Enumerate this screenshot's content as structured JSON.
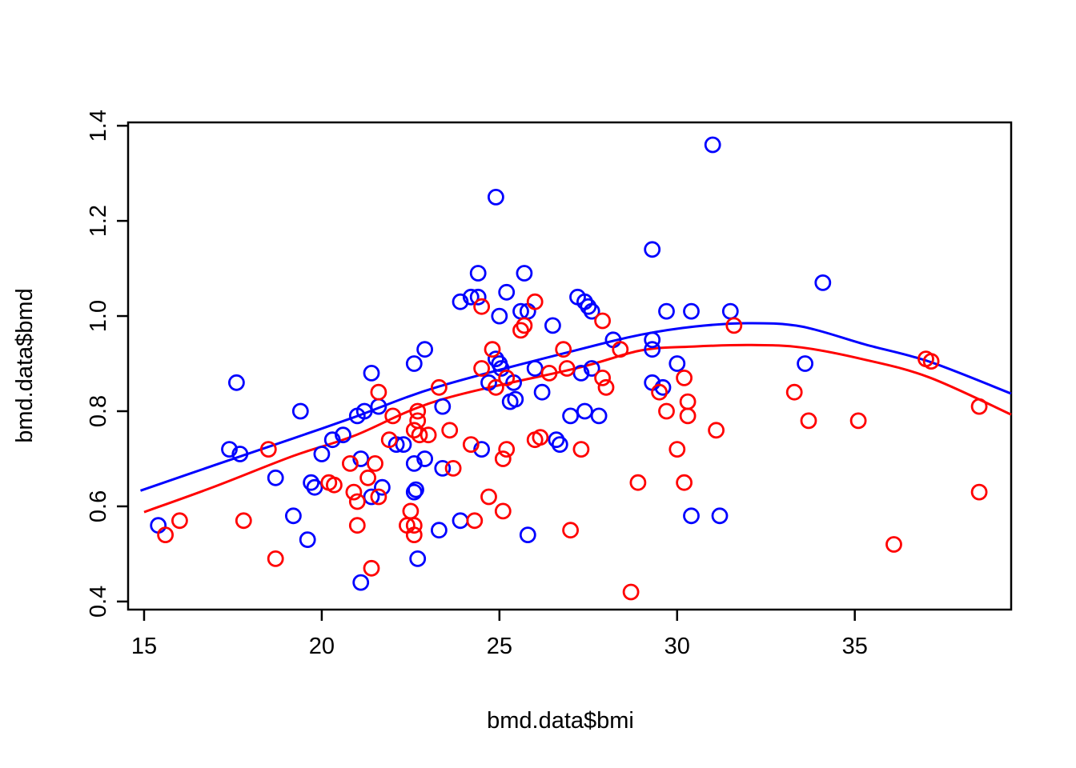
{
  "figure": {
    "background": "#ffffff",
    "border_color": "#000000",
    "x_axis": {
      "title": "bmd.data$bmi",
      "tick_labels": [
        "15",
        "20",
        "25",
        "30",
        "35"
      ],
      "tick_values": [
        15,
        20,
        25,
        30,
        35
      ]
    },
    "y_axis": {
      "title": "bmd.data$bmd",
      "tick_labels": [
        "0.4",
        "0.6",
        "0.8",
        "1.0",
        "1.2",
        "1.4"
      ],
      "tick_values": [
        0.4,
        0.6,
        0.8,
        1.0,
        1.2,
        1.4
      ]
    },
    "colors": {
      "blue_series": "#0000ff",
      "red_series": "#ff0000",
      "axis": "#000000"
    }
  },
  "chart_data": {
    "type": "scatter",
    "title": "",
    "xlabel": "bmd.data$bmi",
    "ylabel": "bmd.data$bmd",
    "xlim": [
      14.55,
      39.4
    ],
    "ylim": [
      0.383,
      1.407
    ],
    "grid": false,
    "legend_position": "none",
    "marker": "open-circle",
    "series": [
      {
        "name": "blue",
        "color": "#0000ff",
        "points": [
          [
            24.9,
            1.25
          ],
          [
            24.4,
            1.09
          ],
          [
            25.7,
            1.09
          ],
          [
            31.0,
            1.36
          ],
          [
            29.3,
            1.14
          ],
          [
            34.1,
            1.07
          ],
          [
            17.6,
            0.86
          ],
          [
            19.4,
            0.8
          ],
          [
            23.9,
            1.03
          ],
          [
            24.2,
            1.04
          ],
          [
            24.4,
            1.04
          ],
          [
            25.2,
            1.05
          ],
          [
            25.0,
            1.0
          ],
          [
            25.6,
            1.01
          ],
          [
            25.8,
            1.01
          ],
          [
            26.5,
            0.98
          ],
          [
            22.9,
            0.93
          ],
          [
            22.6,
            0.9
          ],
          [
            21.4,
            0.88
          ],
          [
            24.9,
            0.91
          ],
          [
            25.0,
            0.9
          ],
          [
            25.05,
            0.89
          ],
          [
            25.4,
            0.86
          ],
          [
            24.7,
            0.86
          ],
          [
            26.0,
            0.89
          ],
          [
            26.2,
            0.84
          ],
          [
            25.3,
            0.82
          ],
          [
            25.45,
            0.825
          ],
          [
            23.4,
            0.81
          ],
          [
            21.0,
            0.79
          ],
          [
            21.2,
            0.8
          ],
          [
            21.6,
            0.81
          ],
          [
            27.2,
            1.04
          ],
          [
            27.4,
            1.03
          ],
          [
            27.5,
            1.02
          ],
          [
            27.6,
            1.01
          ],
          [
            29.7,
            1.01
          ],
          [
            30.4,
            1.01
          ],
          [
            31.5,
            1.01
          ],
          [
            28.2,
            0.95
          ],
          [
            29.3,
            0.95
          ],
          [
            29.3,
            0.93
          ],
          [
            30.0,
            0.9
          ],
          [
            27.6,
            0.89
          ],
          [
            27.3,
            0.88
          ],
          [
            29.3,
            0.86
          ],
          [
            29.6,
            0.85
          ],
          [
            27.4,
            0.8
          ],
          [
            27.8,
            0.79
          ],
          [
            27.0,
            0.79
          ],
          [
            33.6,
            0.9
          ],
          [
            17.4,
            0.72
          ],
          [
            17.7,
            0.71
          ],
          [
            20.0,
            0.71
          ],
          [
            20.3,
            0.74
          ],
          [
            20.6,
            0.75
          ],
          [
            18.7,
            0.66
          ],
          [
            19.7,
            0.65
          ],
          [
            19.8,
            0.64
          ],
          [
            15.4,
            0.56
          ],
          [
            19.2,
            0.58
          ],
          [
            19.6,
            0.53
          ],
          [
            22.1,
            0.73
          ],
          [
            22.3,
            0.73
          ],
          [
            24.5,
            0.72
          ],
          [
            26.7,
            0.73
          ],
          [
            26.6,
            0.74
          ],
          [
            21.1,
            0.7
          ],
          [
            22.6,
            0.69
          ],
          [
            22.9,
            0.7
          ],
          [
            23.4,
            0.68
          ],
          [
            21.7,
            0.64
          ],
          [
            21.4,
            0.62
          ],
          [
            22.6,
            0.63
          ],
          [
            22.65,
            0.635
          ],
          [
            23.3,
            0.55
          ],
          [
            23.9,
            0.57
          ],
          [
            25.8,
            0.54
          ],
          [
            22.7,
            0.49
          ],
          [
            21.1,
            0.44
          ],
          [
            30.4,
            0.58
          ],
          [
            31.2,
            0.58
          ]
        ]
      },
      {
        "name": "red",
        "color": "#ff0000",
        "points": [
          [
            24.5,
            1.02
          ],
          [
            26.0,
            1.03
          ],
          [
            25.6,
            0.97
          ],
          [
            25.7,
            0.98
          ],
          [
            24.8,
            0.93
          ],
          [
            24.5,
            0.89
          ],
          [
            25.2,
            0.87
          ],
          [
            24.9,
            0.85
          ],
          [
            26.8,
            0.93
          ],
          [
            26.4,
            0.88
          ],
          [
            26.9,
            0.89
          ],
          [
            23.3,
            0.85
          ],
          [
            21.6,
            0.84
          ],
          [
            22.0,
            0.79
          ],
          [
            22.7,
            0.8
          ],
          [
            22.7,
            0.78
          ],
          [
            22.6,
            0.76
          ],
          [
            22.75,
            0.75
          ],
          [
            23.0,
            0.75
          ],
          [
            23.6,
            0.76
          ],
          [
            24.2,
            0.73
          ],
          [
            27.9,
            0.99
          ],
          [
            31.6,
            0.98
          ],
          [
            28.4,
            0.93
          ],
          [
            27.9,
            0.87
          ],
          [
            28.0,
            0.85
          ],
          [
            29.5,
            0.84
          ],
          [
            30.2,
            0.87
          ],
          [
            30.3,
            0.82
          ],
          [
            30.3,
            0.79
          ],
          [
            29.7,
            0.8
          ],
          [
            31.1,
            0.76
          ],
          [
            33.3,
            0.84
          ],
          [
            37.0,
            0.91
          ],
          [
            37.15,
            0.905
          ],
          [
            38.5,
            0.81
          ],
          [
            33.7,
            0.78
          ],
          [
            35.1,
            0.78
          ],
          [
            15.6,
            0.54
          ],
          [
            16.0,
            0.57
          ],
          [
            17.8,
            0.57
          ],
          [
            18.7,
            0.49
          ],
          [
            18.5,
            0.72
          ],
          [
            20.2,
            0.65
          ],
          [
            20.35,
            0.645
          ],
          [
            20.8,
            0.69
          ],
          [
            20.9,
            0.63
          ],
          [
            21.9,
            0.74
          ],
          [
            25.2,
            0.72
          ],
          [
            25.1,
            0.7
          ],
          [
            26.0,
            0.74
          ],
          [
            26.15,
            0.745
          ],
          [
            21.5,
            0.69
          ],
          [
            23.7,
            0.68
          ],
          [
            21.3,
            0.66
          ],
          [
            21.6,
            0.62
          ],
          [
            21.0,
            0.61
          ],
          [
            22.5,
            0.59
          ],
          [
            24.7,
            0.62
          ],
          [
            25.1,
            0.59
          ],
          [
            21.0,
            0.56
          ],
          [
            22.4,
            0.56
          ],
          [
            22.6,
            0.56
          ],
          [
            22.6,
            0.54
          ],
          [
            24.3,
            0.57
          ],
          [
            27.0,
            0.55
          ],
          [
            21.4,
            0.47
          ],
          [
            27.3,
            0.72
          ],
          [
            30.0,
            0.72
          ],
          [
            28.9,
            0.65
          ],
          [
            30.2,
            0.65
          ],
          [
            28.7,
            0.42
          ],
          [
            38.5,
            0.63
          ],
          [
            36.1,
            0.52
          ]
        ]
      }
    ],
    "curves": [
      {
        "name": "blue-smooth-fit",
        "color": "#0000ff",
        "points": [
          [
            14.9,
            0.633
          ],
          [
            17.0,
            0.687
          ],
          [
            19.2,
            0.743
          ],
          [
            20.9,
            0.787
          ],
          [
            23.3,
            0.852
          ],
          [
            27.2,
            0.929
          ],
          [
            29.0,
            0.961
          ],
          [
            30.5,
            0.978
          ],
          [
            32.0,
            0.985
          ],
          [
            33.5,
            0.978
          ],
          [
            35.3,
            0.94
          ],
          [
            37.1,
            0.904
          ],
          [
            39.4,
            0.837
          ]
        ]
      },
      {
        "name": "red-smooth-fit",
        "color": "#ff0000",
        "points": [
          [
            15.0,
            0.588
          ],
          [
            17.0,
            0.642
          ],
          [
            19.2,
            0.706
          ],
          [
            20.9,
            0.748
          ],
          [
            23.3,
            0.823
          ],
          [
            27.2,
            0.891
          ],
          [
            29.0,
            0.928
          ],
          [
            30.5,
            0.936
          ],
          [
            32.1,
            0.939
          ],
          [
            33.5,
            0.934
          ],
          [
            35.3,
            0.908
          ],
          [
            37.1,
            0.871
          ],
          [
            39.4,
            0.793
          ]
        ]
      }
    ]
  }
}
